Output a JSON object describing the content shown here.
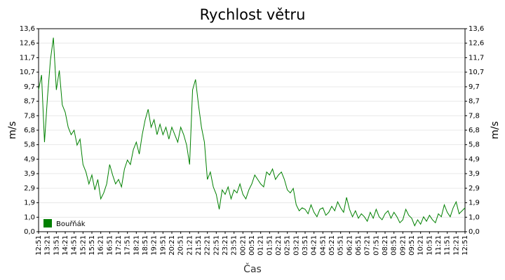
{
  "chart_data": {
    "type": "line",
    "title": "Rychlost větru",
    "ylabel": "m/s",
    "xlabel": "Čas",
    "categories": [
      "12:51",
      null,
      null,
      "13:21",
      null,
      null,
      "13:51",
      null,
      null,
      "14:21",
      null,
      null,
      "14:51",
      null,
      null,
      "15:21",
      null,
      null,
      "15:51",
      null,
      null,
      "16:21",
      null,
      null,
      "16:51",
      null,
      null,
      "17:21",
      null,
      null,
      "17:51",
      null,
      null,
      "18:21",
      null,
      null,
      "18:51",
      null,
      null,
      "19:21",
      null,
      null,
      "19:51",
      null,
      null,
      "20:21",
      null,
      null,
      "20:51",
      null,
      null,
      "21:21",
      null,
      null,
      "21:51",
      null,
      null,
      "22:21",
      null,
      null,
      "22:51",
      null,
      null,
      "23:21",
      null,
      null,
      "23:51",
      null,
      null,
      "00:21",
      null,
      null,
      "00:51",
      null,
      null,
      "01:21",
      null,
      null,
      "01:51",
      null,
      null,
      "02:21",
      null,
      null,
      "02:51",
      null,
      null,
      "03:21",
      null,
      null,
      "03:51",
      null,
      null,
      "04:21",
      null,
      null,
      "04:51",
      null,
      null,
      "05:21",
      null,
      null,
      "05:51",
      null,
      null,
      "06:21",
      null,
      null,
      "06:51",
      null,
      null,
      "07:21",
      null,
      null,
      "07:51",
      null,
      null,
      "08:21",
      null,
      null,
      "08:51",
      null,
      null,
      "09:21",
      null,
      null,
      "09:51",
      null,
      null,
      "10:21",
      null,
      null,
      "10:51",
      null,
      null,
      "11:21",
      null,
      null,
      "11:51",
      null,
      null,
      "12:21",
      null,
      null,
      "12:51"
    ],
    "series": [
      {
        "name": "Bouřňák",
        "color": "#008000",
        "values": [
          9.5,
          10.5,
          6.0,
          9.0,
          11.5,
          13.0,
          9.5,
          10.8,
          8.5,
          8.0,
          7.0,
          6.5,
          6.8,
          5.8,
          6.2,
          4.5,
          4.0,
          3.2,
          3.8,
          2.8,
          3.5,
          2.2,
          2.6,
          3.2,
          4.5,
          3.8,
          3.2,
          3.5,
          3.0,
          4.2,
          4.8,
          4.5,
          5.5,
          6.0,
          5.2,
          6.5,
          7.5,
          8.2,
          7.0,
          7.5,
          6.5,
          7.2,
          6.5,
          7.0,
          6.2,
          7.0,
          6.5,
          6.0,
          7.0,
          6.5,
          5.8,
          4.5,
          9.5,
          10.2,
          8.5,
          7.0,
          6.0,
          3.5,
          4.0,
          3.0,
          2.5,
          1.5,
          2.8,
          2.5,
          3.0,
          2.2,
          2.8,
          2.6,
          3.2,
          2.5,
          2.2,
          2.8,
          3.2,
          3.8,
          3.5,
          3.2,
          3.0,
          4.0,
          3.8,
          4.2,
          3.5,
          3.8,
          4.0,
          3.5,
          2.8,
          2.6,
          2.9,
          1.8,
          1.4,
          1.6,
          1.5,
          1.2,
          1.8,
          1.3,
          1.0,
          1.5,
          1.6,
          1.1,
          1.3,
          1.7,
          1.4,
          2.0,
          1.6,
          1.3,
          2.3,
          1.5,
          1.0,
          1.4,
          0.9,
          1.2,
          1.0,
          0.7,
          1.3,
          0.9,
          1.5,
          1.0,
          0.8,
          1.2,
          1.4,
          0.9,
          1.3,
          1.0,
          0.6,
          0.8,
          1.5,
          1.1,
          0.9,
          0.4,
          0.8,
          0.5,
          1.0,
          0.7,
          1.1,
          0.8,
          0.6,
          1.2,
          1.0,
          1.8,
          1.3,
          1.0,
          1.6,
          2.0,
          1.2,
          1.4,
          1.6
        ]
      }
    ],
    "ylim": [
      0,
      13.6
    ],
    "yticks": [
      {
        "value": 0,
        "label": "0,0"
      },
      {
        "value": 0.97,
        "label": "1,0"
      },
      {
        "value": 1.94,
        "label": "1,9"
      },
      {
        "value": 2.91,
        "label": "2,9"
      },
      {
        "value": 3.89,
        "label": "3,9"
      },
      {
        "value": 4.86,
        "label": "4,9"
      },
      {
        "value": 5.83,
        "label": "5,8"
      },
      {
        "value": 6.8,
        "label": "6,8"
      },
      {
        "value": 7.77,
        "label": "7,8"
      },
      {
        "value": 8.74,
        "label": "8,7"
      },
      {
        "value": 9.71,
        "label": "9,7"
      },
      {
        "value": 10.69,
        "label": "10,7"
      },
      {
        "value": 11.66,
        "label": "11,7"
      },
      {
        "value": 12.63,
        "label": "12,6"
      },
      {
        "value": 13.6,
        "label": "13,6"
      }
    ],
    "grid": true,
    "legend": "lower left"
  }
}
